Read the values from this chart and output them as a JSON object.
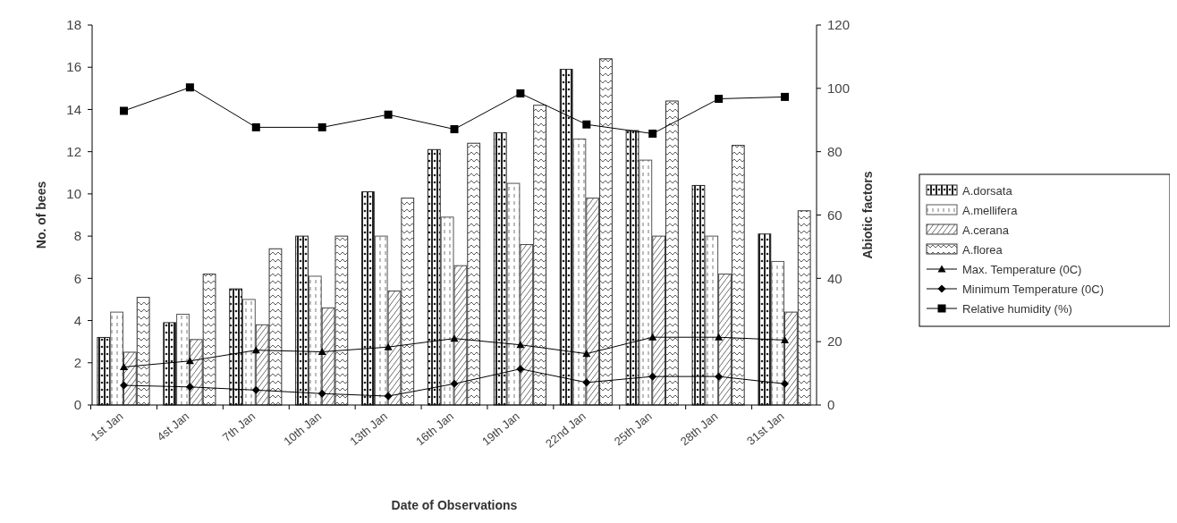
{
  "chart_data": {
    "type": "bar",
    "xlabel": "Date of Observations",
    "ylabel": "No. of bees",
    "y2label": "Abiotic factors",
    "categories": [
      "1st Jan",
      "4st Jan",
      "7th Jan",
      "10th Jan",
      "13th Jan",
      "16th Jan",
      "19th Jan",
      "22nd Jan",
      "25th Jan",
      "28th Jan",
      "31st Jan"
    ],
    "series": [
      {
        "name": "A.dorsata",
        "color": "#222222",
        "values": [
          3.2,
          3.9,
          5.5,
          8.0,
          10.1,
          12.1,
          12.9,
          15.9,
          13.0,
          10.4,
          8.1
        ]
      },
      {
        "name": "A.mellifera",
        "color": "#555555",
        "values": [
          4.4,
          4.3,
          5.0,
          6.1,
          8.0,
          8.9,
          10.5,
          12.6,
          11.6,
          8.0,
          6.8
        ]
      },
      {
        "name": "A.cerana",
        "color": "#444444",
        "values": [
          2.5,
          3.1,
          3.8,
          4.6,
          5.4,
          6.6,
          7.6,
          9.8,
          8.0,
          6.2,
          4.4
        ]
      },
      {
        "name": "A.florea",
        "color": "#333333",
        "values": [
          5.1,
          6.2,
          7.4,
          8.0,
          9.8,
          12.4,
          14.2,
          16.4,
          14.4,
          12.3,
          9.2
        ]
      },
      {
        "name": "Max. Temperature (0C)",
        "type": "line",
        "axis": "y2",
        "marker": "triangle",
        "color": "#000000",
        "values": [
          12,
          13.9,
          17.3,
          16.8,
          18.3,
          21,
          19,
          16.2,
          21.4,
          21.4,
          20.5
        ]
      },
      {
        "name": "Minimum Temperature (0C)",
        "type": "line",
        "axis": "y2",
        "marker": "diamond",
        "color": "#000000",
        "values": [
          6.2,
          5.7,
          4.7,
          3.6,
          2.8,
          6.7,
          11.4,
          7.1,
          9,
          9,
          6.7
        ]
      },
      {
        "name": "Relative humidity (%)",
        "type": "line",
        "axis": "y2",
        "marker": "square",
        "color": "#000000",
        "values": [
          92.9,
          100.3,
          87.7,
          87.7,
          91.7,
          87.1,
          98.4,
          88.6,
          85.7,
          96.7,
          97.3
        ]
      }
    ],
    "ylim": [
      0,
      18
    ],
    "yticks": [
      0,
      2,
      4,
      6,
      8,
      10,
      12,
      14,
      16,
      18
    ],
    "y2lim": [
      0,
      120
    ],
    "y2ticks": [
      0,
      20,
      40,
      60,
      80,
      100,
      120
    ],
    "legend": "right",
    "line_style": "solid",
    "grid": false
  }
}
